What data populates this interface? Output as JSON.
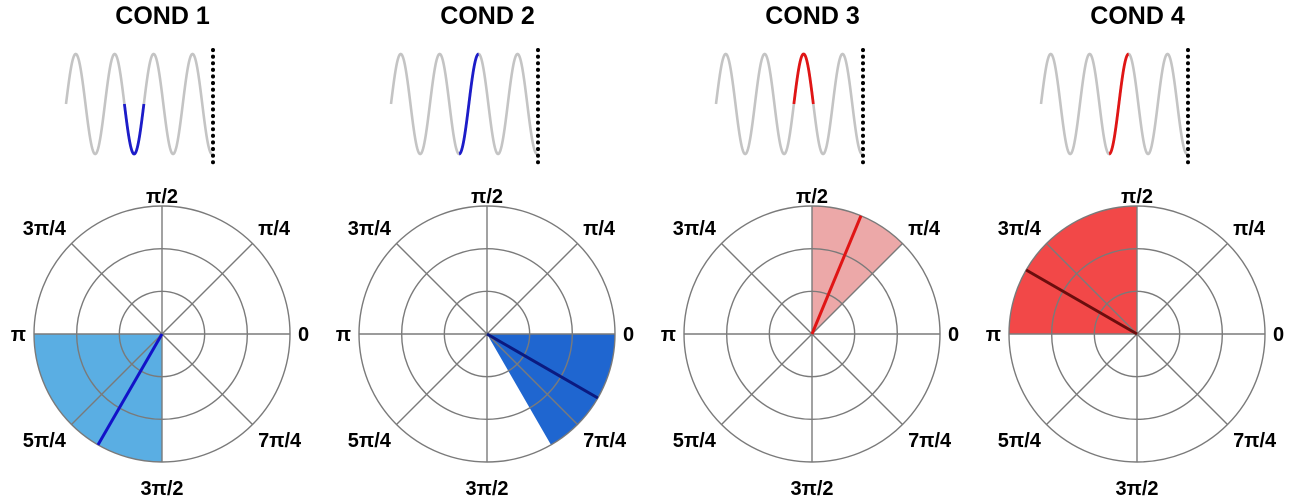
{
  "panels": [
    {
      "title": "COND 1",
      "wave_color": "#1c1cc9",
      "window_start_deg": 540,
      "window_end_deg": 720,
      "sector": {
        "from": "π",
        "to": "3π/2",
        "fill": "#5aaee3"
      },
      "mean_direction": "4π/3",
      "mean_color": "#1212c8"
    },
    {
      "title": "COND 2",
      "wave_color": "#1c1cc9",
      "window_start_deg": 630,
      "window_end_deg": 810,
      "sector": {
        "from": "5π/3",
        "to": "2π",
        "fill": "#1f66d0"
      },
      "mean_direction": "11π/6",
      "mean_color": "#0b1a80"
    },
    {
      "title": "COND 3",
      "wave_color": "#e01515",
      "window_start_deg": 720,
      "window_end_deg": 900,
      "sector": {
        "from": "π/4",
        "to": "π/2",
        "fill": "#eca8a8"
      },
      "mean_direction": "3π/8",
      "mean_color": "#e01515"
    },
    {
      "title": "COND 4",
      "wave_color": "#e01515",
      "window_start_deg": 630,
      "window_end_deg": 810,
      "sector": {
        "from": "π/2",
        "to": "π",
        "fill": "#f24848"
      },
      "mean_direction": "5π/6",
      "mean_color": "#6b0d0d"
    }
  ],
  "angle_labels": [
    "0",
    "π/4",
    "π/2",
    "3π/4",
    "π",
    "5π/4",
    "3π/2",
    "7π/4"
  ]
}
